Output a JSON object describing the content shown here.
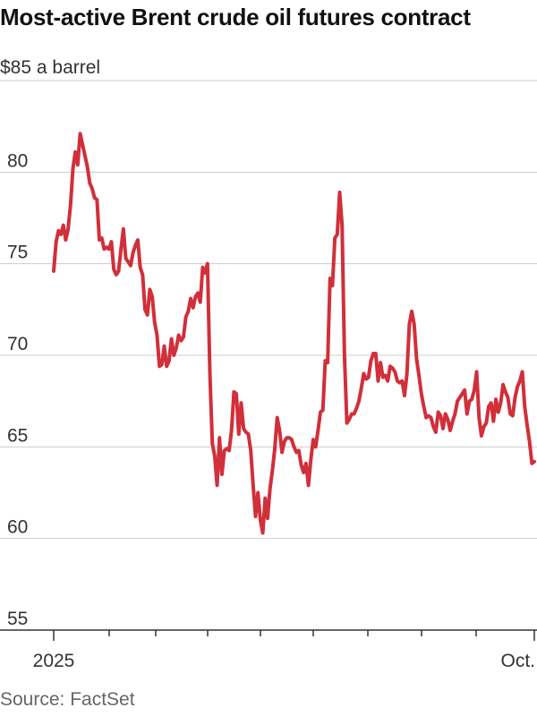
{
  "chart_data": {
    "type": "line",
    "title": "Most-active Brent crude oil futures contract",
    "ylabel": "$85 a barrel",
    "ylim": [
      55,
      85
    ],
    "y_ticks": [
      "80",
      "75",
      "70",
      "65",
      "60",
      "55"
    ],
    "x_tick_labels": [
      "2025",
      "Oct."
    ],
    "source": "Source: FactSet",
    "colors": {
      "line": "#d12f3a",
      "grid": "#cccccc",
      "axis": "#333333"
    },
    "grid": true,
    "series": [
      {
        "values": [
          74.6,
          76.2,
          76.8,
          76.6,
          77.1,
          76.3,
          76.9,
          78.2,
          80.2,
          81.1,
          80.4,
          82.1,
          81.5,
          80.9,
          80.3,
          79.4,
          79.1,
          78.6,
          78.5,
          76.3,
          76.4,
          75.8,
          75.9,
          75.8,
          76.2,
          74.7,
          74.4,
          74.6,
          75.8,
          76.9,
          75.3,
          75.1,
          74.9,
          75.6,
          76.0,
          76.3,
          74.8,
          74.4,
          72.5,
          72.2,
          73.6,
          73.2,
          71.8,
          71.1,
          69.4,
          69.5,
          70.5,
          69.4,
          69.7,
          70.9,
          70.0,
          70.4,
          71.1,
          70.8,
          71.0,
          72.1,
          72.4,
          73.1,
          72.6,
          73.2,
          73.4,
          72.9,
          74.8,
          74.5,
          75.0,
          69.0,
          65.2,
          64.5,
          62.9,
          65.5,
          63.5,
          64.8,
          64.9,
          64.8,
          65.9,
          68.0,
          67.9,
          65.7,
          67.4,
          66.0,
          65.8,
          65.7,
          64.8,
          62.9,
          61.2,
          62.5,
          61.0,
          60.3,
          62.2,
          61.1,
          62.7,
          63.7,
          64.9,
          66.6,
          65.9,
          64.7,
          65.3,
          65.5,
          65.5,
          65.4,
          65.0,
          64.7,
          64.8,
          64.0,
          63.6,
          64.1,
          62.9,
          64.3,
          65.4,
          65.0,
          65.9,
          66.9,
          67.0,
          69.7,
          69.6,
          74.2,
          73.8,
          76.4,
          76.6,
          78.9,
          77.1,
          70.0,
          66.3,
          66.5,
          66.8,
          66.8,
          67.1,
          67.5,
          68.2,
          69.0,
          68.7,
          68.8,
          69.7,
          70.1,
          70.1,
          68.6,
          69.6,
          68.8,
          68.9,
          68.6,
          69.4,
          69.3,
          69.1,
          68.6,
          68.5,
          68.6,
          67.8,
          69.0,
          71.7,
          72.4,
          71.7,
          69.8,
          68.9,
          67.9,
          67.2,
          66.6,
          66.7,
          66.6,
          66.1,
          65.8,
          66.9,
          66.7,
          66.0,
          66.8,
          66.5,
          65.9,
          66.4,
          66.8,
          67.5,
          67.7,
          67.9,
          68.1,
          66.8,
          67.5,
          67.6,
          68.1,
          69.1,
          66.6,
          65.6,
          66.1,
          66.3,
          67.2,
          67.4,
          66.4,
          67.6,
          66.9,
          67.4,
          68.4,
          68.0,
          67.7,
          66.8,
          66.7,
          67.7,
          68.3,
          68.6,
          69.1,
          67.2,
          66.2,
          65.3,
          64.1,
          64.2
        ]
      }
    ]
  }
}
